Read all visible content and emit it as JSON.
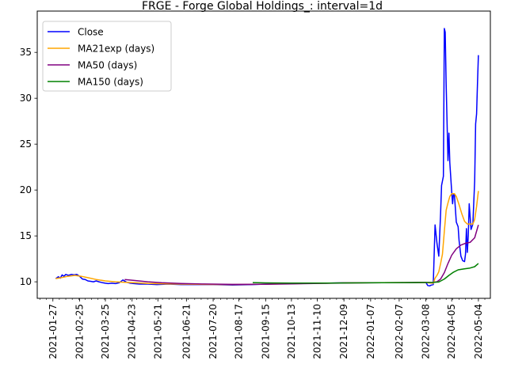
{
  "chart_data": {
    "type": "line",
    "title": "FRGE - Forge Global Holdings_: interval=1d",
    "xlabel": "",
    "ylabel": "",
    "x_range": [
      "2021-01-10",
      "2022-05-17"
    ],
    "ylim": [
      8.2,
      39.5
    ],
    "yticks": [
      10,
      15,
      20,
      25,
      30,
      35
    ],
    "xticks": [
      "2021-01-27",
      "2021-02-25",
      "2021-03-25",
      "2021-04-23",
      "2021-05-21",
      "2021-06-21",
      "2021-07-20",
      "2021-08-17",
      "2021-09-15",
      "2021-10-13",
      "2021-11-10",
      "2021-12-09",
      "2022-01-07",
      "2022-02-07",
      "2022-03-08",
      "2022-04-05",
      "2022-05-04"
    ],
    "grid": false,
    "legend": "top-left",
    "series": [
      {
        "name": "Close",
        "color": "#0000ff",
        "points": [
          [
            "2021-01-30",
            10.35
          ],
          [
            "2021-02-02",
            10.55
          ],
          [
            "2021-02-04",
            10.4
          ],
          [
            "2021-02-06",
            10.75
          ],
          [
            "2021-02-08",
            10.6
          ],
          [
            "2021-02-10",
            10.8
          ],
          [
            "2021-02-13",
            10.7
          ],
          [
            "2021-02-16",
            10.8
          ],
          [
            "2021-02-19",
            10.75
          ],
          [
            "2021-02-22",
            10.8
          ],
          [
            "2021-02-25",
            10.6
          ],
          [
            "2021-02-28",
            10.3
          ],
          [
            "2021-03-03",
            10.25
          ],
          [
            "2021-03-06",
            10.1
          ],
          [
            "2021-03-09",
            10.05
          ],
          [
            "2021-03-12",
            10.0
          ],
          [
            "2021-03-15",
            10.1
          ],
          [
            "2021-03-18",
            10.0
          ],
          [
            "2021-03-22",
            9.9
          ],
          [
            "2021-03-25",
            9.85
          ],
          [
            "2021-03-28",
            9.8
          ],
          [
            "2021-04-01",
            9.85
          ],
          [
            "2021-04-05",
            9.8
          ],
          [
            "2021-04-09",
            9.9
          ],
          [
            "2021-04-13",
            10.2
          ],
          [
            "2021-04-17",
            9.95
          ],
          [
            "2021-04-21",
            9.85
          ],
          [
            "2021-04-25",
            9.8
          ],
          [
            "2021-05-01",
            9.75
          ],
          [
            "2021-05-10",
            9.75
          ],
          [
            "2021-05-20",
            9.7
          ],
          [
            "2021-06-01",
            9.75
          ],
          [
            "2021-06-15",
            9.7
          ],
          [
            "2021-07-01",
            9.7
          ],
          [
            "2021-07-20",
            9.7
          ],
          [
            "2021-08-10",
            9.65
          ],
          [
            "2021-09-01",
            9.7
          ],
          [
            "2021-09-15",
            9.75
          ],
          [
            "2021-10-01",
            9.8
          ],
          [
            "2021-10-13",
            9.8
          ],
          [
            "2021-11-01",
            9.85
          ],
          [
            "2021-11-20",
            9.85
          ],
          [
            "2021-12-09",
            9.9
          ],
          [
            "2022-01-07",
            9.9
          ],
          [
            "2022-02-07",
            9.9
          ],
          [
            "2022-03-01",
            9.95
          ],
          [
            "2022-03-08",
            9.95
          ],
          [
            "2022-03-10",
            9.6
          ],
          [
            "2022-03-12",
            9.55
          ],
          [
            "2022-03-14",
            9.65
          ],
          [
            "2022-03-16",
            9.7
          ],
          [
            "2022-03-18",
            16.2
          ],
          [
            "2022-03-20",
            14.2
          ],
          [
            "2022-03-22",
            12.8
          ],
          [
            "2022-03-24",
            17.5
          ],
          [
            "2022-03-25",
            20.5
          ],
          [
            "2022-03-27",
            21.5
          ],
          [
            "2022-03-28",
            37.6
          ],
          [
            "2022-03-29",
            37.2
          ],
          [
            "2022-03-30",
            31.5
          ],
          [
            "2022-04-01",
            23.2
          ],
          [
            "2022-04-02",
            26.2
          ],
          [
            "2022-04-03",
            23.0
          ],
          [
            "2022-04-05",
            19.8
          ],
          [
            "2022-04-06",
            18.5
          ],
          [
            "2022-04-07",
            19.6
          ],
          [
            "2022-04-08",
            19.4
          ],
          [
            "2022-04-10",
            16.5
          ],
          [
            "2022-04-12",
            16.0
          ],
          [
            "2022-04-13",
            14.5
          ],
          [
            "2022-04-15",
            12.8
          ],
          [
            "2022-04-17",
            12.3
          ],
          [
            "2022-04-19",
            12.2
          ],
          [
            "2022-04-20",
            13.0
          ],
          [
            "2022-04-21",
            15.8
          ],
          [
            "2022-04-22",
            13.2
          ],
          [
            "2022-04-23",
            15.0
          ],
          [
            "2022-04-24",
            18.5
          ],
          [
            "2022-04-26",
            15.7
          ],
          [
            "2022-04-28",
            16.3
          ],
          [
            "2022-04-30",
            21.0
          ],
          [
            "2022-05-01",
            27.2
          ],
          [
            "2022-05-02",
            28.3
          ],
          [
            "2022-05-03",
            31.5
          ],
          [
            "2022-05-04",
            34.7
          ]
        ]
      },
      {
        "name": "MA21exp (days)",
        "color": "#ffa500",
        "points": [
          [
            "2021-01-30",
            10.35
          ],
          [
            "2021-02-05",
            10.45
          ],
          [
            "2021-02-12",
            10.6
          ],
          [
            "2021-02-20",
            10.7
          ],
          [
            "2021-02-27",
            10.6
          ],
          [
            "2021-03-06",
            10.45
          ],
          [
            "2021-03-15",
            10.25
          ],
          [
            "2021-03-25",
            10.1
          ],
          [
            "2021-04-05",
            10.0
          ],
          [
            "2021-04-15",
            9.95
          ],
          [
            "2021-04-25",
            9.9
          ],
          [
            "2021-05-10",
            9.82
          ],
          [
            "2021-06-01",
            9.78
          ],
          [
            "2021-07-01",
            9.73
          ],
          [
            "2021-08-10",
            9.7
          ],
          [
            "2021-09-15",
            9.74
          ],
          [
            "2021-10-13",
            9.8
          ],
          [
            "2021-11-20",
            9.85
          ],
          [
            "2021-12-09",
            9.88
          ],
          [
            "2022-01-07",
            9.9
          ],
          [
            "2022-02-07",
            9.92
          ],
          [
            "2022-03-08",
            9.93
          ],
          [
            "2022-03-12",
            9.88
          ],
          [
            "2022-03-16",
            9.85
          ],
          [
            "2022-03-18",
            10.4
          ],
          [
            "2022-03-20",
            10.7
          ],
          [
            "2022-03-22",
            11.1
          ],
          [
            "2022-03-24",
            12.0
          ],
          [
            "2022-03-26",
            13.0
          ],
          [
            "2022-03-28",
            15.5
          ],
          [
            "2022-03-30",
            17.8
          ],
          [
            "2022-04-01",
            18.6
          ],
          [
            "2022-04-03",
            19.3
          ],
          [
            "2022-04-05",
            19.6
          ],
          [
            "2022-04-08",
            19.6
          ],
          [
            "2022-04-10",
            19.3
          ],
          [
            "2022-04-13",
            18.4
          ],
          [
            "2022-04-16",
            17.4
          ],
          [
            "2022-04-19",
            16.6
          ],
          [
            "2022-04-22",
            16.3
          ],
          [
            "2022-04-25",
            16.3
          ],
          [
            "2022-04-28",
            16.3
          ],
          [
            "2022-04-30",
            16.8
          ],
          [
            "2022-05-02",
            18.2
          ],
          [
            "2022-05-04",
            19.9
          ]
        ]
      },
      {
        "name": "MA50 (days)",
        "color": "#800080",
        "points": [
          [
            "2021-04-15",
            10.25
          ],
          [
            "2021-04-25",
            10.15
          ],
          [
            "2021-05-10",
            10.0
          ],
          [
            "2021-05-25",
            9.9
          ],
          [
            "2021-06-15",
            9.82
          ],
          [
            "2021-07-10",
            9.76
          ],
          [
            "2021-08-10",
            9.72
          ],
          [
            "2021-09-15",
            9.73
          ],
          [
            "2021-10-13",
            9.78
          ],
          [
            "2021-11-20",
            9.84
          ],
          [
            "2021-12-20",
            9.88
          ],
          [
            "2022-01-20",
            9.9
          ],
          [
            "2022-02-20",
            9.92
          ],
          [
            "2022-03-15",
            9.93
          ],
          [
            "2022-03-20",
            10.0
          ],
          [
            "2022-03-24",
            10.3
          ],
          [
            "2022-03-28",
            11.0
          ],
          [
            "2022-04-01",
            12.0
          ],
          [
            "2022-04-05",
            12.9
          ],
          [
            "2022-04-10",
            13.6
          ],
          [
            "2022-04-15",
            14.0
          ],
          [
            "2022-04-20",
            14.2
          ],
          [
            "2022-04-25",
            14.3
          ],
          [
            "2022-04-30",
            14.8
          ],
          [
            "2022-05-04",
            16.2
          ]
        ]
      },
      {
        "name": "MA150 (days)",
        "color": "#008000",
        "points": [
          [
            "2021-09-01",
            9.92
          ],
          [
            "2021-09-15",
            9.88
          ],
          [
            "2021-10-13",
            9.86
          ],
          [
            "2021-11-20",
            9.86
          ],
          [
            "2021-12-20",
            9.88
          ],
          [
            "2022-01-20",
            9.9
          ],
          [
            "2022-02-20",
            9.92
          ],
          [
            "2022-03-15",
            9.93
          ],
          [
            "2022-03-22",
            9.98
          ],
          [
            "2022-03-28",
            10.3
          ],
          [
            "2022-04-02",
            10.7
          ],
          [
            "2022-04-07",
            11.05
          ],
          [
            "2022-04-12",
            11.3
          ],
          [
            "2022-04-18",
            11.4
          ],
          [
            "2022-04-25",
            11.5
          ],
          [
            "2022-04-30",
            11.65
          ],
          [
            "2022-05-04",
            12.0
          ]
        ]
      }
    ]
  }
}
